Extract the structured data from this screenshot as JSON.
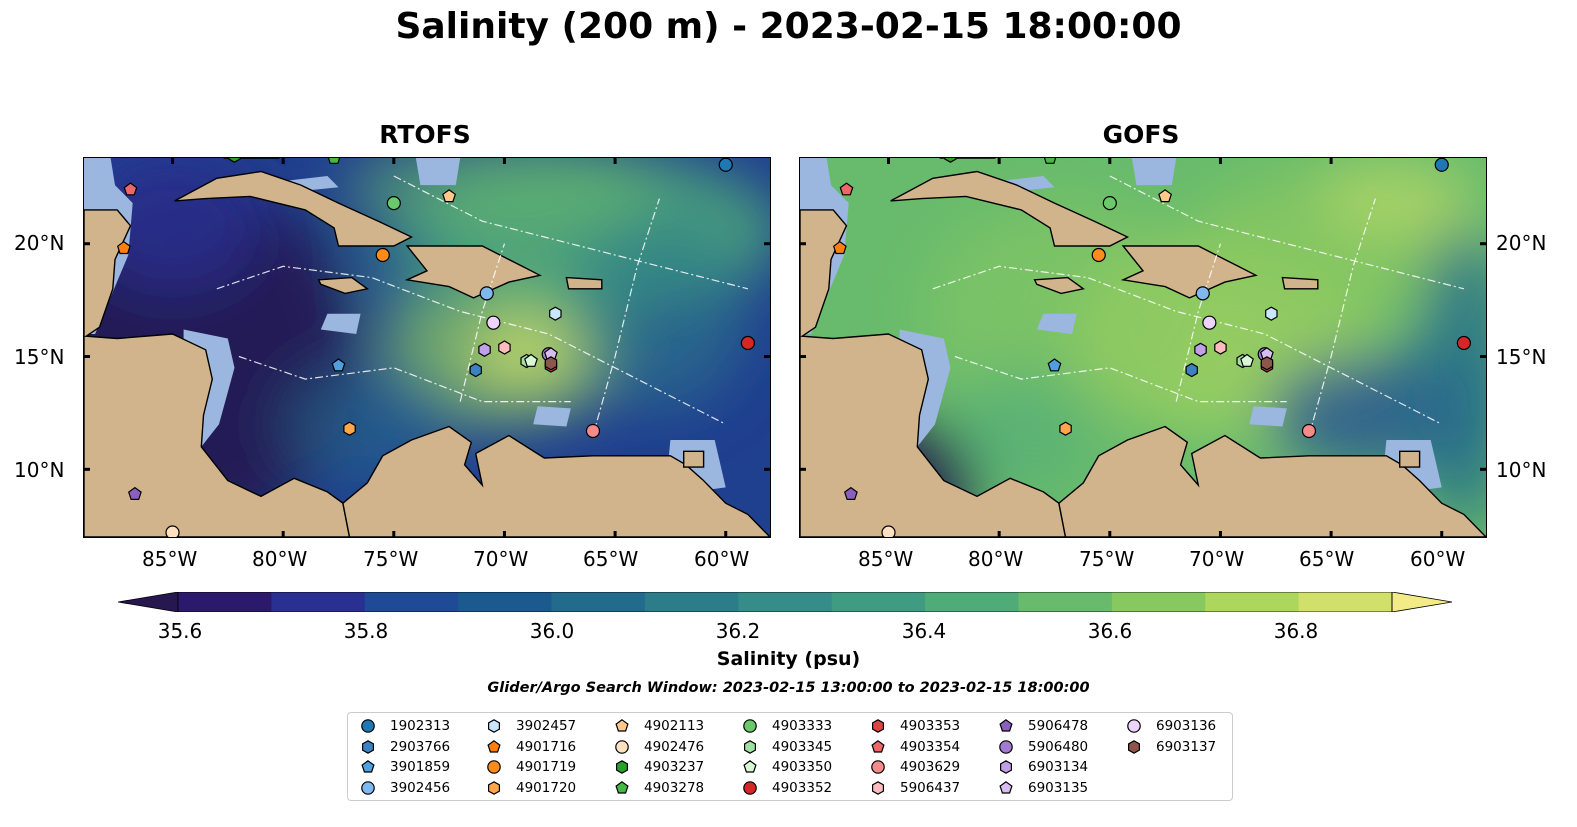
{
  "title": "Salinity (200 m) - 2023-02-15 18:00:00",
  "panels": [
    {
      "title": "RTOFS",
      "model": "rtofs"
    },
    {
      "title": "GOFS",
      "model": "gofs"
    }
  ],
  "lon_ticks": [
    "85°W",
    "80°W",
    "75°W",
    "70°W",
    "65°W",
    "60°W"
  ],
  "lat_ticks": [
    "20°N",
    "15°N",
    "10°N"
  ],
  "colorbar": {
    "label": "Salinity (psu)",
    "tick_labels": [
      "35.6",
      "35.8",
      "36.0",
      "36.2",
      "36.4",
      "36.6",
      "36.8"
    ],
    "colors": [
      "#2b1a6b",
      "#2a2f92",
      "#1f4a96",
      "#1a5a8e",
      "#236b8c",
      "#2c7c8a",
      "#358c88",
      "#3f9c82",
      "#4fac79",
      "#68bb6c",
      "#88c860",
      "#acd65c",
      "#d0e06a"
    ],
    "over_color": "#f3eb85",
    "under_color": "#26174f"
  },
  "window_text": "Glider/Argo Search Window: 2023-02-15 13:00:00 to 2023-02-15 18:00:00",
  "land_color": "#d2b48c",
  "shelf_color": "#9bb7e0",
  "legend": [
    {
      "id": "1902313",
      "marker": "circle",
      "color": "#1f77b4"
    },
    {
      "id": "2903766",
      "marker": "hexagon",
      "color": "#3b82c4"
    },
    {
      "id": "3901859",
      "marker": "pentagon",
      "color": "#4ea0e0"
    },
    {
      "id": "3902456",
      "marker": "circle",
      "color": "#7fb9ee"
    },
    {
      "id": "3902457",
      "marker": "hexagon",
      "color": "#c9e6ff"
    },
    {
      "id": "4901716",
      "marker": "pentagon",
      "color": "#ff7f0e"
    },
    {
      "id": "4901719",
      "marker": "circle",
      "color": "#ff8c1a"
    },
    {
      "id": "4901720",
      "marker": "hexagon",
      "color": "#ffa64d"
    },
    {
      "id": "4902113",
      "marker": "pentagon",
      "color": "#ffc98c"
    },
    {
      "id": "4902476",
      "marker": "circle",
      "color": "#ffe0c0"
    },
    {
      "id": "4903237",
      "marker": "hexagon",
      "color": "#2ca02c"
    },
    {
      "id": "4903278",
      "marker": "pentagon",
      "color": "#44b944"
    },
    {
      "id": "4903333",
      "marker": "circle",
      "color": "#6bc96b"
    },
    {
      "id": "4903345",
      "marker": "hexagon",
      "color": "#a0e0a0"
    },
    {
      "id": "4903350",
      "marker": "pentagon",
      "color": "#d7f7d7"
    },
    {
      "id": "4903352",
      "marker": "circle",
      "color": "#d62728"
    },
    {
      "id": "4903353",
      "marker": "hexagon",
      "color": "#dd4444"
    },
    {
      "id": "4903354",
      "marker": "pentagon",
      "color": "#ee6666"
    },
    {
      "id": "4903629",
      "marker": "circle",
      "color": "#f58a8a"
    },
    {
      "id": "5906437",
      "marker": "hexagon",
      "color": "#ffbcbc"
    },
    {
      "id": "5906478",
      "marker": "pentagon",
      "color": "#8c5fbf"
    },
    {
      "id": "5906480",
      "marker": "circle",
      "color": "#a27bd1"
    },
    {
      "id": "6903134",
      "marker": "hexagon",
      "color": "#c0a0e6"
    },
    {
      "id": "6903135",
      "marker": "pentagon",
      "color": "#d8bdf2"
    },
    {
      "id": "6903136",
      "marker": "circle",
      "color": "#ecd4fa"
    },
    {
      "id": "6903137",
      "marker": "hexagon",
      "color": "#8c564b"
    }
  ],
  "floats": [
    {
      "id": "1902313",
      "lon": -60.0,
      "lat": 23.5
    },
    {
      "id": "2903766",
      "lon": -71.3,
      "lat": 14.4
    },
    {
      "id": "3901859",
      "lon": -77.5,
      "lat": 14.6
    },
    {
      "id": "3902456",
      "lon": -70.8,
      "lat": 17.8
    },
    {
      "id": "3902457",
      "lon": -67.7,
      "lat": 16.9
    },
    {
      "id": "4901716",
      "lon": -87.2,
      "lat": 19.8
    },
    {
      "id": "4901719",
      "lon": -75.5,
      "lat": 19.5
    },
    {
      "id": "4901720",
      "lon": -77.0,
      "lat": 11.8
    },
    {
      "id": "4902113",
      "lon": -72.5,
      "lat": 22.1
    },
    {
      "id": "4902476",
      "lon": -85.0,
      "lat": 7.2
    },
    {
      "id": "4903237",
      "lon": -82.2,
      "lat": 23.9
    },
    {
      "id": "4903278",
      "lon": -77.7,
      "lat": 23.8
    },
    {
      "id": "4903333",
      "lon": -75.0,
      "lat": 21.8
    },
    {
      "id": "4903345",
      "lon": -69.0,
      "lat": 14.8
    },
    {
      "id": "4903350",
      "lon": -68.8,
      "lat": 14.8
    },
    {
      "id": "4903352",
      "lon": -59.0,
      "lat": 15.6
    },
    {
      "id": "4903353",
      "lon": -67.9,
      "lat": 14.6
    },
    {
      "id": "4903354",
      "lon": -86.9,
      "lat": 22.4
    },
    {
      "id": "4903629",
      "lon": -66.0,
      "lat": 11.7
    },
    {
      "id": "5906437",
      "lon": -70.0,
      "lat": 15.4
    },
    {
      "id": "5906478",
      "lon": -86.7,
      "lat": 8.9
    },
    {
      "id": "5906480",
      "lon": -68.0,
      "lat": 15.1
    },
    {
      "id": "6903134",
      "lon": -70.9,
      "lat": 15.3
    },
    {
      "id": "6903135",
      "lon": -67.9,
      "lat": 15.1
    },
    {
      "id": "6903136",
      "lon": -70.5,
      "lat": 16.5
    },
    {
      "id": "6903137",
      "lon": -67.9,
      "lat": 14.7
    }
  ]
}
